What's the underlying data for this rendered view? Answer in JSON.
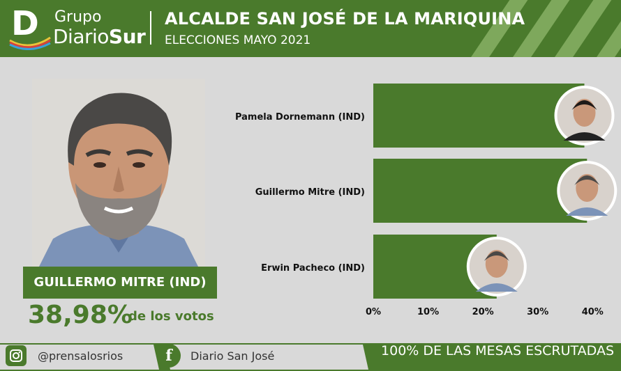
{
  "brand": {
    "logo_letter": "D",
    "line1": "Grupo",
    "line2_a": "Diario",
    "line2_b": "Sur"
  },
  "header": {
    "title": "ALCALDE SAN JOSÉ DE LA MARIQUINA",
    "subtitle": "ELECCIONES MAYO 2021"
  },
  "winner": {
    "name": "GUILLERMO MITRE (IND)",
    "percent": "38,98%",
    "suffix": "de los votos"
  },
  "footer": {
    "instagram": "@prensalosrios",
    "facebook": "Diario San José",
    "status": "100% DE LAS MESAS ESCRUTADAS"
  },
  "colors": {
    "primary_green": "#4a7a2c",
    "light_stripe": "#7ea85c",
    "background": "#d9d9d9"
  },
  "icons": [
    "instagram-icon",
    "facebook-icon",
    "candidate-portrait"
  ],
  "chart_data": {
    "type": "bar",
    "orientation": "horizontal",
    "categories": [
      "Pamela Dornemann (IND)",
      "Guillermo Mitre (IND)",
      "Erwin Pacheco (IND)"
    ],
    "values": [
      38.5,
      38.98,
      22.5
    ],
    "xticks": [
      "0%",
      "10%",
      "20%",
      "30%",
      "40%"
    ],
    "xlim": [
      0,
      42
    ],
    "grid": false
  }
}
